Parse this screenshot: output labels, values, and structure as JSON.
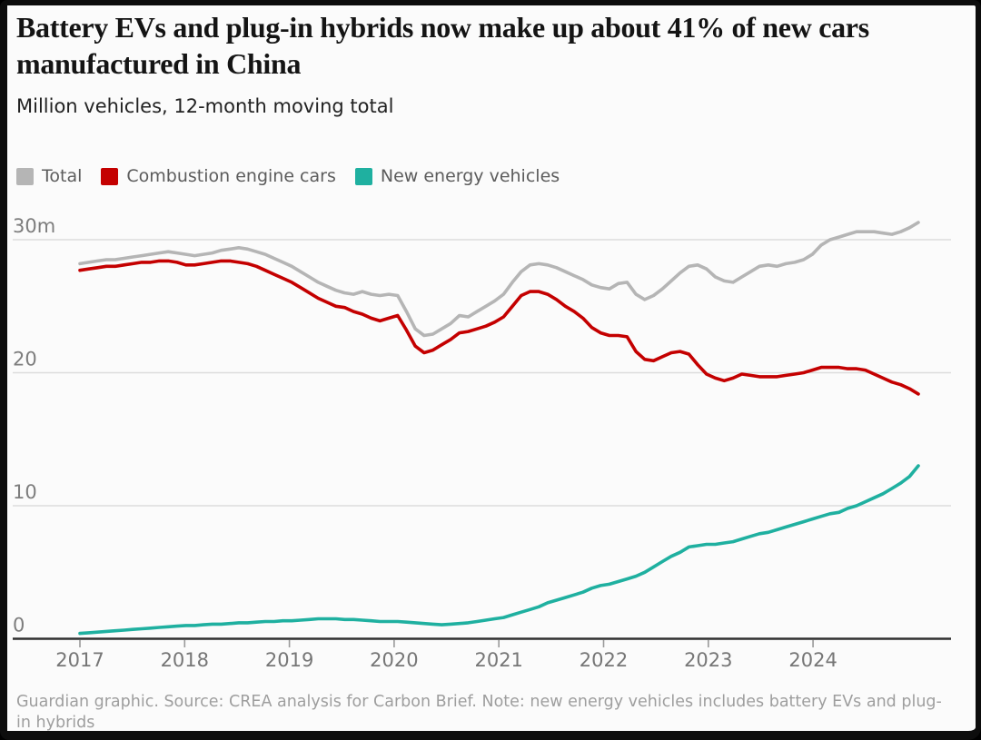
{
  "header": {
    "title": "Battery EVs and plug-in hybrids now make up about 41% of new cars manufactured in China",
    "subtitle": "Million vehicles, 12-month moving total"
  },
  "legend": [
    {
      "label": "Total",
      "color": "#b5b5b5"
    },
    {
      "label": "Combustion engine cars",
      "color": "#c40000"
    },
    {
      "label": "New energy vehicles",
      "color": "#1fb0a0"
    }
  ],
  "footer": {
    "credit": "Guardian graphic. Source: CREA analysis for Carbon Brief. Note: new energy vehicles includes battery EVs and plug-in hybrids"
  },
  "chart_data": {
    "type": "line",
    "title": "Battery EVs and plug-in hybrids now make up about 41% of new cars manufactured in China",
    "ylabel": "Million vehicles, 12-month moving total",
    "x_start_year": 2017,
    "points_per_year": 12,
    "x_range": [
      2017.0,
      2025.0
    ],
    "ylim": [
      0,
      31.5
    ],
    "grid": "horizontal",
    "legend_position": "top",
    "x_ticks": [
      "2017",
      "2018",
      "2019",
      "2020",
      "2021",
      "2022",
      "2023",
      "2024"
    ],
    "y_ticks": [
      {
        "value": 30,
        "label": "30m"
      },
      {
        "value": 20,
        "label": "20"
      },
      {
        "value": 10,
        "label": "10"
      },
      {
        "value": 0,
        "label": "0"
      }
    ],
    "series": [
      {
        "name": "Total",
        "color": "#b5b5b5",
        "values": [
          28.2,
          28.3,
          28.4,
          28.5,
          28.5,
          28.6,
          28.7,
          28.8,
          28.9,
          29.0,
          29.1,
          29.0,
          28.9,
          28.8,
          28.9,
          29.0,
          29.2,
          29.3,
          29.4,
          29.3,
          29.1,
          28.9,
          28.6,
          28.3,
          28.0,
          27.6,
          27.2,
          26.8,
          26.5,
          26.2,
          26.0,
          25.9,
          26.1,
          25.9,
          25.8,
          25.9,
          25.8,
          24.6,
          23.3,
          22.8,
          22.9,
          23.3,
          23.7,
          24.3,
          24.2,
          24.6,
          25.0,
          25.4,
          25.9,
          26.8,
          27.6,
          28.1,
          28.2,
          28.1,
          27.9,
          27.6,
          27.3,
          27.0,
          26.6,
          26.4,
          26.3,
          26.7,
          26.8,
          25.9,
          25.5,
          25.8,
          26.3,
          26.9,
          27.5,
          28.0,
          28.1,
          27.8,
          27.2,
          26.9,
          26.8,
          27.2,
          27.6,
          28.0,
          28.1,
          28.0,
          28.2,
          28.3,
          28.5,
          28.9,
          29.6,
          30.0,
          30.2,
          30.4,
          30.6,
          30.6,
          30.6,
          30.5,
          30.4,
          30.6,
          30.9,
          31.3
        ]
      },
      {
        "name": "Combustion engine cars",
        "color": "#c40000",
        "values": [
          27.7,
          27.8,
          27.9,
          28.0,
          28.0,
          28.1,
          28.2,
          28.3,
          28.3,
          28.4,
          28.4,
          28.3,
          28.1,
          28.1,
          28.2,
          28.3,
          28.4,
          28.4,
          28.3,
          28.2,
          28.0,
          27.7,
          27.4,
          27.1,
          26.8,
          26.4,
          26.0,
          25.6,
          25.3,
          25.0,
          24.9,
          24.6,
          24.4,
          24.1,
          23.9,
          24.1,
          24.3,
          23.2,
          22.0,
          21.5,
          21.7,
          22.1,
          22.5,
          23.0,
          23.1,
          23.3,
          23.5,
          23.8,
          24.2,
          25.0,
          25.8,
          26.1,
          26.1,
          25.9,
          25.5,
          25.0,
          24.6,
          24.1,
          23.4,
          23.0,
          22.8,
          22.8,
          22.7,
          21.6,
          21.0,
          20.9,
          21.2,
          21.5,
          21.6,
          21.4,
          20.6,
          19.9,
          19.6,
          19.4,
          19.6,
          19.9,
          19.8,
          19.7,
          19.7,
          19.7,
          19.8,
          19.9,
          20.0,
          20.2,
          20.4,
          20.4,
          20.4,
          20.3,
          20.3,
          20.2,
          19.9,
          19.6,
          19.3,
          19.1,
          18.8,
          18.4
        ]
      },
      {
        "name": "New energy vehicles",
        "color": "#1fb0a0",
        "values": [
          0.4,
          0.45,
          0.5,
          0.55,
          0.6,
          0.65,
          0.7,
          0.75,
          0.8,
          0.85,
          0.9,
          0.95,
          1.0,
          1.0,
          1.05,
          1.1,
          1.1,
          1.15,
          1.2,
          1.2,
          1.25,
          1.3,
          1.3,
          1.35,
          1.35,
          1.4,
          1.45,
          1.5,
          1.5,
          1.5,
          1.45,
          1.45,
          1.4,
          1.35,
          1.3,
          1.3,
          1.3,
          1.25,
          1.2,
          1.15,
          1.1,
          1.05,
          1.1,
          1.15,
          1.2,
          1.3,
          1.4,
          1.5,
          1.6,
          1.8,
          2.0,
          2.2,
          2.4,
          2.7,
          2.9,
          3.1,
          3.3,
          3.5,
          3.8,
          4.0,
          4.1,
          4.3,
          4.5,
          4.7,
          5.0,
          5.4,
          5.8,
          6.2,
          6.5,
          6.9,
          7.0,
          7.1,
          7.1,
          7.2,
          7.3,
          7.5,
          7.7,
          7.9,
          8.0,
          8.2,
          8.4,
          8.6,
          8.8,
          9.0,
          9.2,
          9.4,
          9.5,
          9.8,
          10.0,
          10.3,
          10.6,
          10.9,
          11.3,
          11.7,
          12.2,
          13.0
        ]
      }
    ]
  }
}
